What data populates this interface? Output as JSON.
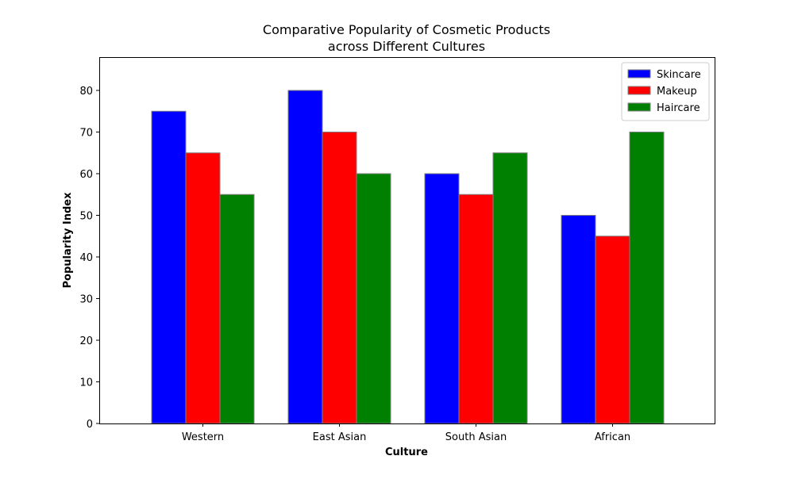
{
  "chart_data": {
    "type": "bar",
    "title": "Comparative Popularity of Cosmetic Products",
    "subtitle": "across Different Cultures",
    "xlabel": "Culture",
    "ylabel": "Popularity Index",
    "categories": [
      "Western",
      "East Asian",
      "South Asian",
      "African"
    ],
    "series": [
      {
        "name": "Skincare",
        "color": "#0000ff",
        "values": [
          75,
          80,
          60,
          50
        ]
      },
      {
        "name": "Makeup",
        "color": "#ff0000",
        "values": [
          65,
          70,
          55,
          45
        ]
      },
      {
        "name": "Haircare",
        "color": "#008000",
        "values": [
          55,
          60,
          65,
          70
        ]
      }
    ],
    "ylim": [
      0,
      88
    ],
    "yticks": [
      0,
      10,
      20,
      30,
      40,
      50,
      60,
      70,
      80
    ],
    "bar_edge_color": "#808080",
    "grid": false,
    "legend_position": "top-right"
  }
}
